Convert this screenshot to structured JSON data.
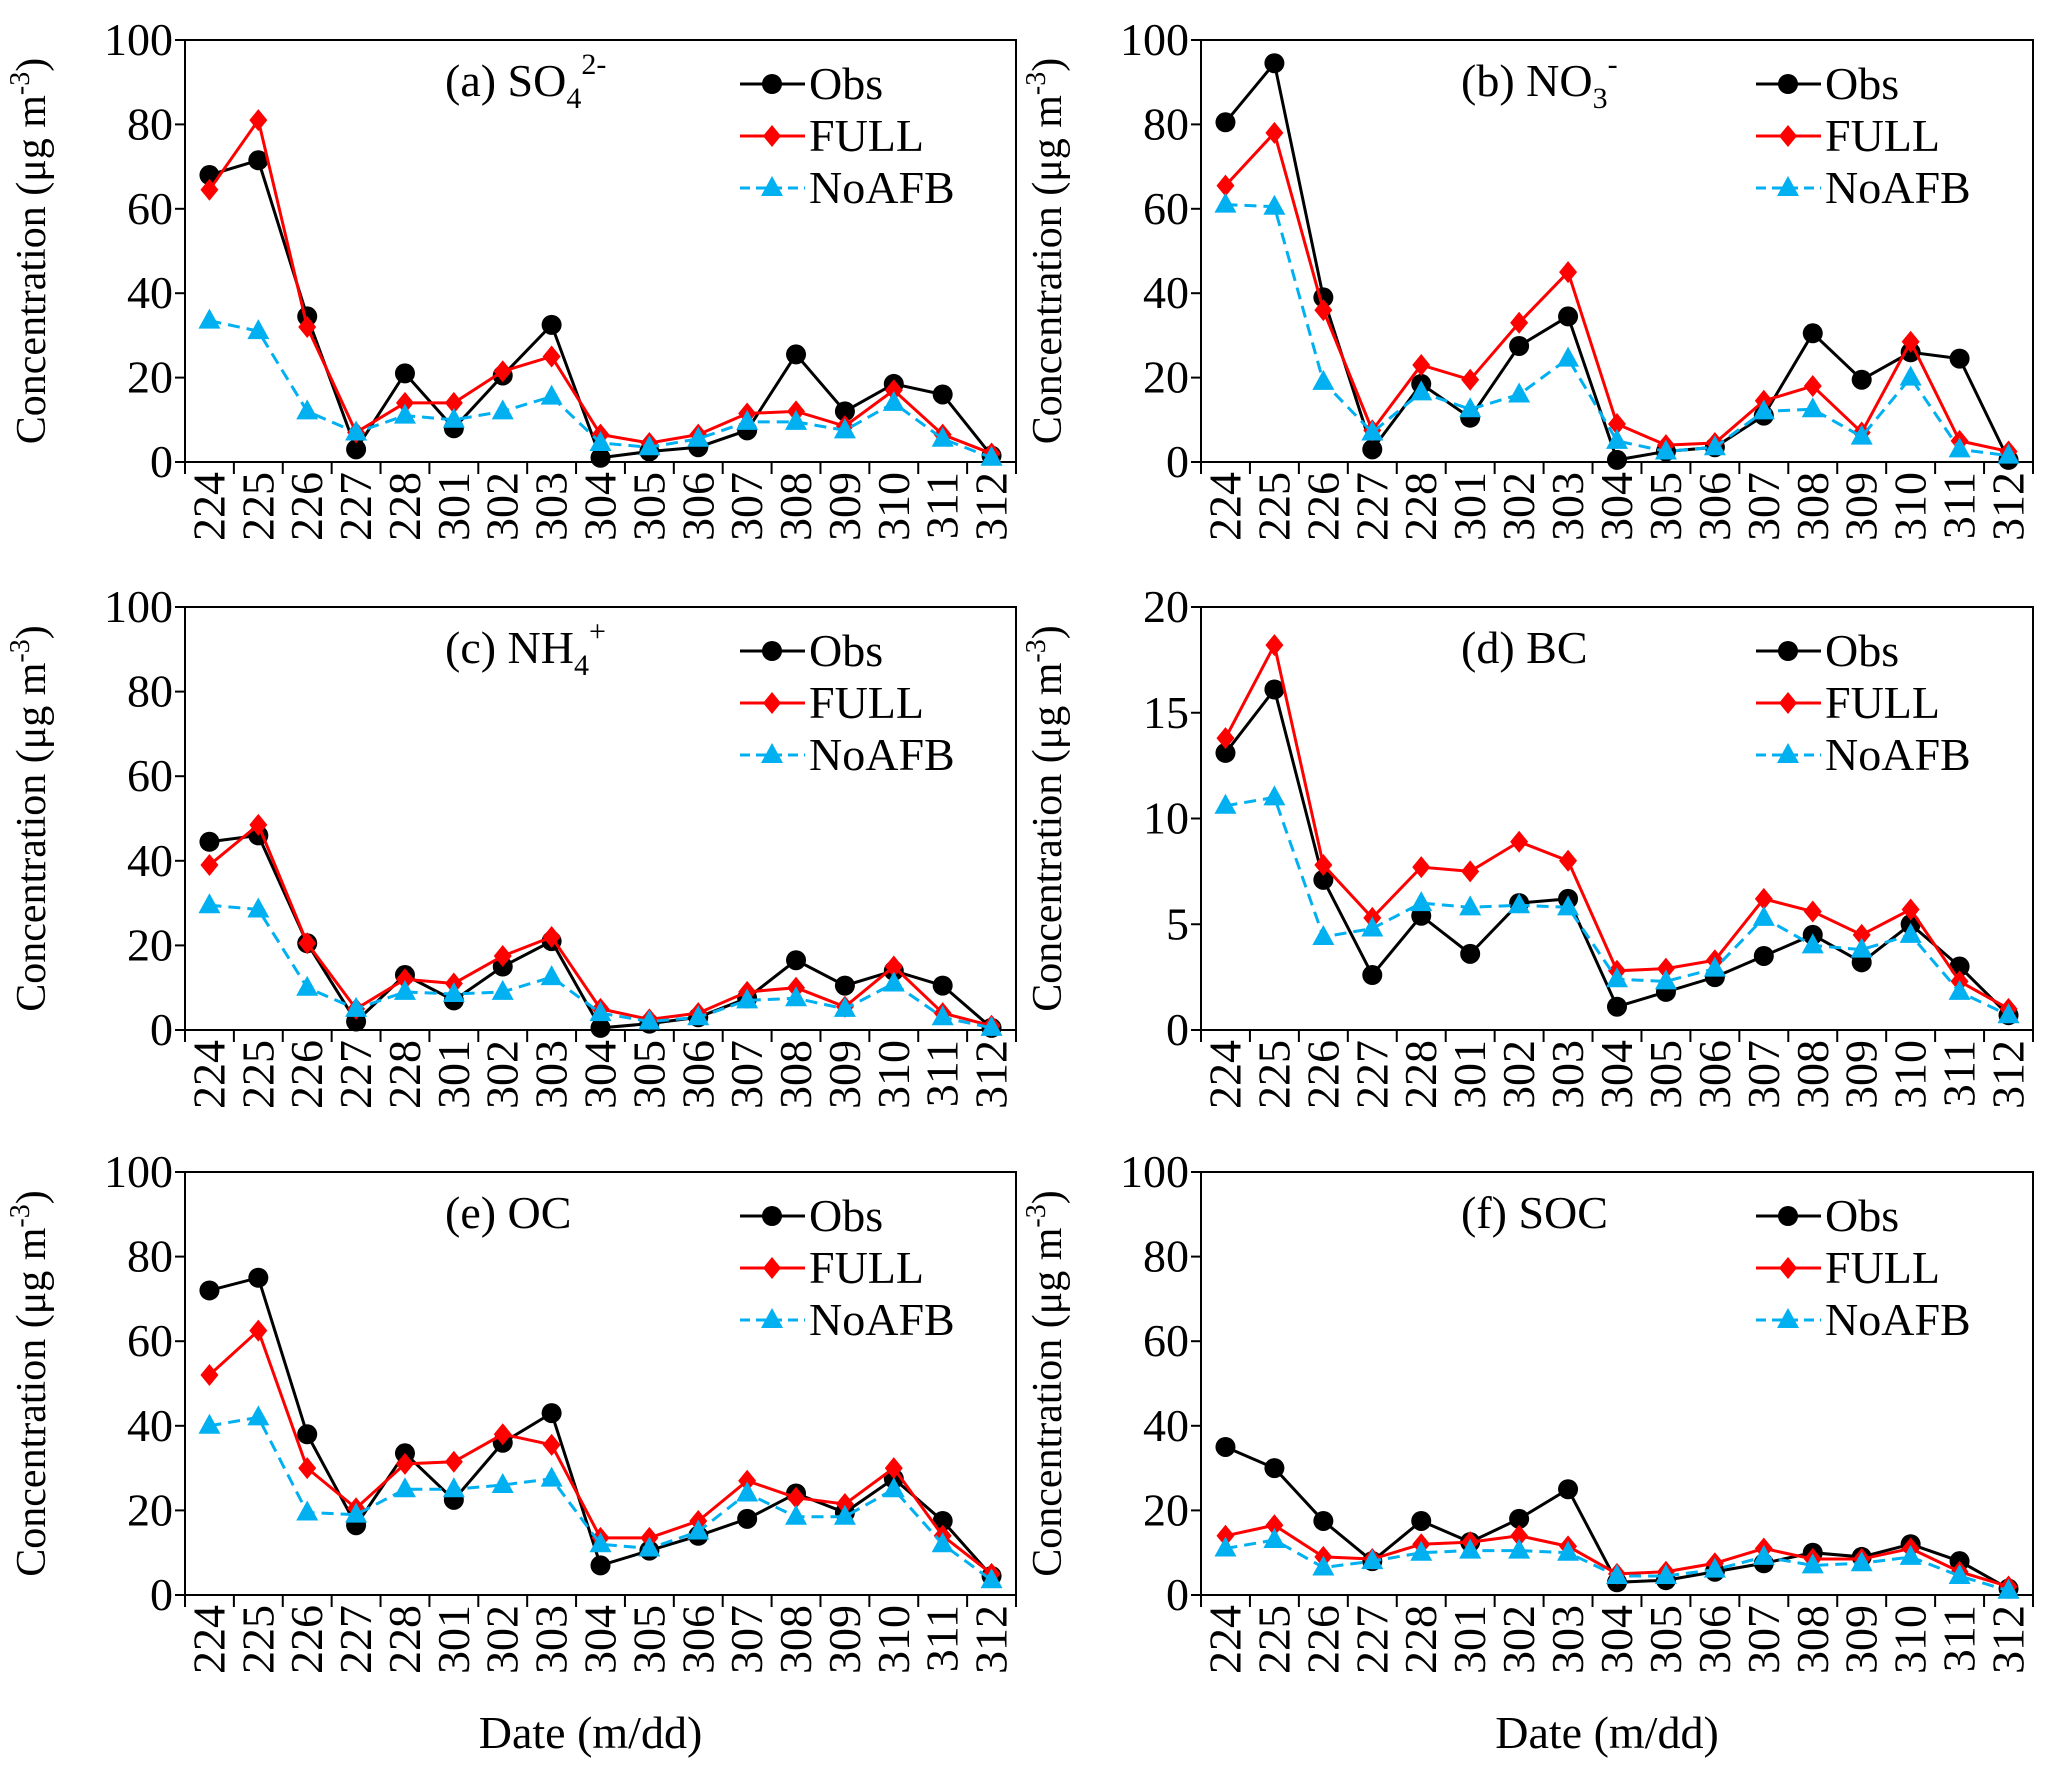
{
  "legend_entries": [
    "Obs",
    "FULL",
    "NoAFB"
  ],
  "series_colors": {
    "Obs": "#000000",
    "FULL": "#ff0000",
    "NoAFB": "#00b0f0"
  },
  "series_markers": {
    "Obs": "circle",
    "FULL": "diamond",
    "NoAFB": "triangle"
  },
  "series_line_styles": {
    "Obs": "solid",
    "FULL": "solid",
    "NoAFB": "dashed"
  },
  "xlabel": "Date (m/dd)",
  "ylabel": {
    "text": "Concentration  (μg m",
    "sup": "-3",
    "end": ")"
  },
  "chart_data": [
    {
      "type": "line",
      "title": {
        "text": "(a) SO",
        "sub": "4",
        "sup": "2-"
      },
      "categories": [
        "224",
        "225",
        "226",
        "227",
        "228",
        "301",
        "302",
        "303",
        "304",
        "305",
        "306",
        "307",
        "308",
        "309",
        "310",
        "311",
        "312"
      ],
      "ylim": [
        0,
        100
      ],
      "yticks": [
        0,
        20,
        40,
        60,
        80,
        100
      ],
      "series": [
        {
          "name": "Obs",
          "values": [
            68,
            71.5,
            34.5,
            3,
            21,
            8,
            20.5,
            32.5,
            1,
            2.5,
            3.5,
            7.5,
            25.5,
            12,
            18.5,
            16,
            1.5
          ]
        },
        {
          "name": "FULL",
          "values": [
            64.5,
            81,
            32,
            7,
            14,
            14,
            21.5,
            25,
            6.5,
            4.5,
            6.5,
            11.5,
            12,
            8.5,
            17,
            6.5,
            2
          ]
        },
        {
          "name": "NoAFB",
          "values": [
            33.5,
            31,
            12,
            7,
            11,
            10,
            12,
            15.5,
            4.5,
            3.5,
            5.5,
            9.5,
            9.5,
            7.5,
            14,
            5.5,
            1
          ]
        }
      ]
    },
    {
      "type": "line",
      "title": {
        "text": "(b) NO",
        "sub": "3",
        "sup": "-"
      },
      "categories": [
        "224",
        "225",
        "226",
        "227",
        "228",
        "301",
        "302",
        "303",
        "304",
        "305",
        "306",
        "307",
        "308",
        "309",
        "310",
        "311",
        "312"
      ],
      "ylim": [
        0,
        100
      ],
      "yticks": [
        0,
        20,
        40,
        60,
        80,
        100
      ],
      "series": [
        {
          "name": "Obs",
          "values": [
            80.5,
            94.5,
            39,
            3,
            18.5,
            10.5,
            27.5,
            34.5,
            0.5,
            2.5,
            3.5,
            11,
            30.5,
            19.5,
            26,
            24.5,
            0.5
          ]
        },
        {
          "name": "FULL",
          "values": [
            65.5,
            78,
            36,
            7.5,
            23,
            19.5,
            33,
            45,
            9,
            4,
            4.5,
            14.5,
            18,
            7,
            28.5,
            5,
            2.5
          ]
        },
        {
          "name": "NoAFB",
          "values": [
            61,
            60.5,
            19,
            7,
            16.5,
            12.5,
            16,
            24.5,
            5,
            2.5,
            3.5,
            12,
            12.5,
            6,
            20,
            3,
            1.5
          ]
        }
      ]
    },
    {
      "type": "line",
      "title": {
        "text": "(c) NH",
        "sub": "4",
        "sup": "+"
      },
      "categories": [
        "224",
        "225",
        "226",
        "227",
        "228",
        "301",
        "302",
        "303",
        "304",
        "305",
        "306",
        "307",
        "308",
        "309",
        "310",
        "311",
        "312"
      ],
      "ylim": [
        0,
        100
      ],
      "yticks": [
        0,
        20,
        40,
        60,
        80,
        100
      ],
      "series": [
        {
          "name": "Obs",
          "values": [
            44.5,
            46,
            20.5,
            2,
            13,
            7,
            15,
            21,
            0.5,
            1.5,
            3,
            7.5,
            16.5,
            10.5,
            14,
            10.5,
            0.5
          ]
        },
        {
          "name": "FULL",
          "values": [
            39,
            48.5,
            20.5,
            5,
            12,
            11,
            17.5,
            22,
            5,
            2.5,
            4,
            9,
            10,
            5.5,
            15,
            4,
            1
          ]
        },
        {
          "name": "NoAFB",
          "values": [
            29.5,
            28.5,
            10,
            5,
            9,
            8.5,
            9,
            12.5,
            4,
            2,
            3,
            7,
            7.5,
            5,
            11,
            3,
            0.5
          ]
        }
      ]
    },
    {
      "type": "line",
      "title": {
        "text": "(d) BC",
        "sub": "",
        "sup": ""
      },
      "categories": [
        "224",
        "225",
        "226",
        "227",
        "228",
        "301",
        "302",
        "303",
        "304",
        "305",
        "306",
        "307",
        "308",
        "309",
        "310",
        "311",
        "312"
      ],
      "ylim": [
        0,
        20
      ],
      "yticks": [
        0,
        5,
        10,
        15,
        20
      ],
      "series": [
        {
          "name": "Obs",
          "values": [
            13.1,
            16.1,
            7.1,
            2.6,
            5.4,
            3.6,
            6.0,
            6.2,
            1.1,
            1.8,
            2.5,
            3.5,
            4.5,
            3.2,
            5.0,
            3.0,
            0.7
          ]
        },
        {
          "name": "FULL",
          "values": [
            13.8,
            18.2,
            7.8,
            5.3,
            7.7,
            7.5,
            8.9,
            8.0,
            2.8,
            2.9,
            3.3,
            6.2,
            5.6,
            4.5,
            5.7,
            2.3,
            1.0
          ]
        },
        {
          "name": "NoAFB",
          "values": [
            10.6,
            11.0,
            4.4,
            4.8,
            6.0,
            5.8,
            5.9,
            5.8,
            2.4,
            2.3,
            2.9,
            5.3,
            4.0,
            3.8,
            4.5,
            1.8,
            0.7
          ]
        }
      ]
    },
    {
      "type": "line",
      "title": {
        "text": "(e) OC",
        "sub": "",
        "sup": ""
      },
      "categories": [
        "224",
        "225",
        "226",
        "227",
        "228",
        "301",
        "302",
        "303",
        "304",
        "305",
        "306",
        "307",
        "308",
        "309",
        "310",
        "311",
        "312"
      ],
      "ylim": [
        0,
        100
      ],
      "yticks": [
        0,
        20,
        40,
        60,
        80,
        100
      ],
      "series": [
        {
          "name": "Obs",
          "values": [
            72,
            75,
            38,
            16.5,
            33.5,
            22.5,
            36,
            43,
            7,
            10.5,
            14,
            18,
            24,
            19.5,
            27.5,
            17.5,
            4.5
          ]
        },
        {
          "name": "FULL",
          "values": [
            52,
            62.5,
            30,
            20.5,
            31,
            31.5,
            38,
            35.5,
            13.5,
            13.5,
            17.5,
            27,
            23,
            21.5,
            30,
            14,
            5
          ]
        },
        {
          "name": "NoAFB",
          "values": [
            40,
            42,
            19.5,
            19,
            25,
            25,
            26,
            27.5,
            12,
            11,
            15,
            24,
            18.5,
            18.5,
            25,
            12,
            3.5
          ]
        }
      ]
    },
    {
      "type": "line",
      "title": {
        "text": "(f) SOC",
        "sub": "",
        "sup": ""
      },
      "categories": [
        "224",
        "225",
        "226",
        "227",
        "228",
        "301",
        "302",
        "303",
        "304",
        "305",
        "306",
        "307",
        "308",
        "309",
        "310",
        "311",
        "312"
      ],
      "ylim": [
        0,
        100
      ],
      "yticks": [
        0,
        20,
        40,
        60,
        80,
        100
      ],
      "series": [
        {
          "name": "Obs",
          "values": [
            35,
            30,
            17.5,
            8,
            17.5,
            12.5,
            18,
            25,
            3,
            3.5,
            5.5,
            7.5,
            10,
            9,
            12,
            8,
            1.5
          ]
        },
        {
          "name": "FULL",
          "values": [
            14,
            16.5,
            9,
            8.5,
            12,
            12.5,
            14,
            11.5,
            5,
            5.5,
            7.5,
            11,
            8.5,
            8.5,
            11,
            5.5,
            2
          ]
        },
        {
          "name": "NoAFB",
          "values": [
            11,
            13,
            6.5,
            8,
            10,
            10.5,
            10.5,
            10,
            4.5,
            4.5,
            6,
            9,
            7,
            7.5,
            9,
            4.5,
            1
          ]
        }
      ]
    }
  ]
}
